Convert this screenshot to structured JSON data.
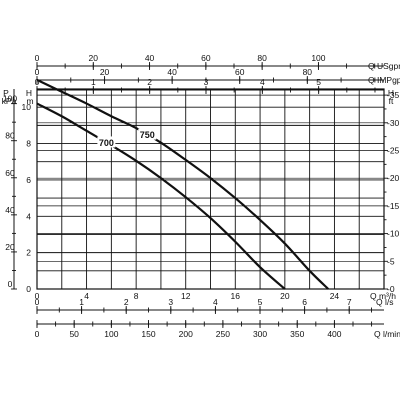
{
  "chart_data": {
    "type": "line",
    "title": "",
    "grid": true,
    "legend": "none",
    "primary_x": {
      "label": "Q m³/h",
      "range": [
        0,
        28
      ],
      "ticks": [
        "0",
        "4",
        "8",
        "12",
        "16",
        "20",
        "24"
      ]
    },
    "primary_y": {
      "label": "H m",
      "range": [
        0,
        11
      ],
      "ticks": [
        "0",
        "2",
        "4",
        "6",
        "8",
        "10"
      ]
    },
    "top_axes": [
      {
        "label": "Q USgpm",
        "range": [
          0,
          123.3
        ],
        "ticks": [
          "0",
          "20",
          "40",
          "60",
          "80",
          "100"
        ]
      },
      {
        "label": "Q IMPgpm",
        "range": [
          0,
          102.7
        ],
        "ticks": [
          "0",
          "20",
          "40",
          "60",
          "80"
        ]
      },
      {
        "label": "",
        "range": [
          0,
          6.16
        ],
        "ticks": [
          "0",
          "1",
          "2",
          "3",
          "4",
          "5"
        ]
      }
    ],
    "bottom_axes": [
      {
        "label": "Q l/s",
        "range": [
          0,
          7.78
        ],
        "ticks": [
          "0",
          "1",
          "2",
          "3",
          "4",
          "5",
          "6",
          "7"
        ]
      },
      {
        "label": "Q l/min",
        "range": [
          0,
          466.7
        ],
        "ticks": [
          "0",
          "50",
          "100",
          "150",
          "200",
          "250",
          "300",
          "350",
          "400"
        ]
      }
    ],
    "left_axis_secondary": {
      "label": "P kPa",
      "range": [
        0,
        107.9
      ],
      "ticks": [
        "0",
        "20",
        "40",
        "60",
        "80",
        "100"
      ]
    },
    "right_axis": {
      "label": "H ft",
      "range": [
        0,
        36.1
      ],
      "ticks": [
        "0",
        "5",
        "10",
        "15",
        "20",
        "25",
        "30",
        "35"
      ]
    },
    "series": [
      {
        "name": "750",
        "x": [
          0,
          2,
          4,
          6,
          8,
          10,
          12,
          14,
          16,
          18,
          20,
          22,
          23.5
        ],
        "y": [
          11.5,
          10.85,
          10.2,
          9.5,
          8.85,
          8.05,
          7.1,
          6.1,
          5.0,
          3.8,
          2.5,
          1.0,
          0
        ]
      },
      {
        "name": "700",
        "x": [
          0,
          2,
          4,
          6,
          8,
          10,
          12,
          14,
          16,
          18,
          20
        ],
        "y": [
          10.2,
          9.5,
          8.7,
          7.9,
          7.05,
          6.1,
          5.05,
          3.9,
          2.6,
          1.2,
          0
        ]
      }
    ]
  }
}
